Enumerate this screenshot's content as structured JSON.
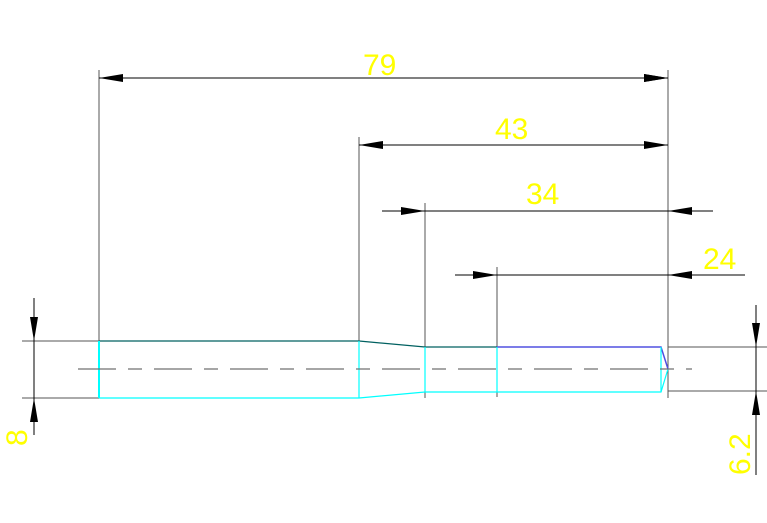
{
  "dimensions": {
    "overall_length": "79",
    "length_43": "43",
    "length_34": "34",
    "length_24": "24",
    "diameter_left": "8",
    "diameter_right": "6.2"
  },
  "colors": {
    "dimension_text": "#ffff00",
    "dimension_line": "#000000",
    "outline_cyan": "#00ffff",
    "outline_teal": "#006060",
    "outline_blue": "#5050e0",
    "centerline": "#707070"
  }
}
